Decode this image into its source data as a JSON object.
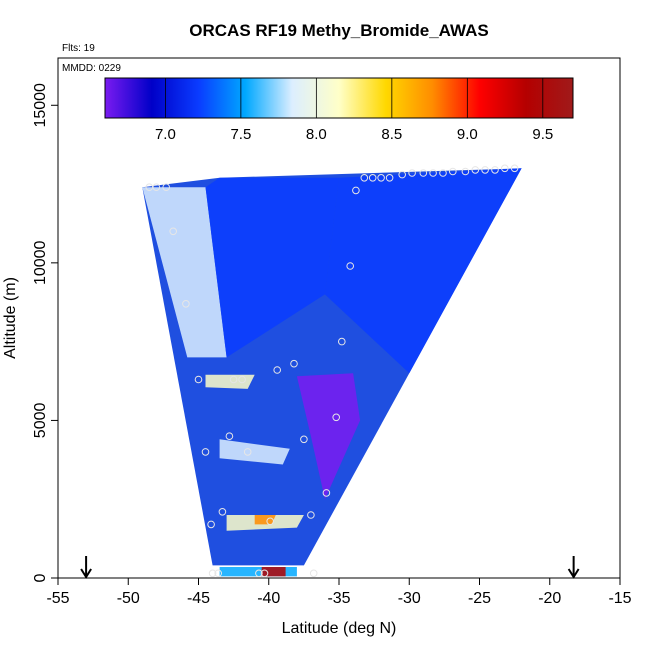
{
  "chart_data": {
    "type": "heatmap",
    "title": "ORCAS RF19 Methy_Bromide_AWAS",
    "annotations": [
      "Flts: 19",
      "MMDD: 0229"
    ],
    "xlabel": "Latitude (deg N)",
    "ylabel": "Altitude (m)",
    "xlim": [
      -55,
      -15
    ],
    "ylim": [
      0,
      16500
    ],
    "x_ticks": [
      -55,
      -50,
      -45,
      -40,
      -35,
      -30,
      -25,
      -20,
      -15
    ],
    "x_tick_labels": [
      "-55",
      "-50",
      "-45",
      "-40",
      "-35",
      "-30",
      "-25",
      "-20",
      "-15"
    ],
    "y_ticks": [
      0,
      5000,
      10000,
      15000
    ],
    "y_tick_labels": [
      "0",
      "5000",
      "10000",
      "15000"
    ],
    "grid": false,
    "colorbar": {
      "range": [
        6.6,
        9.7
      ],
      "ticks": [
        7.0,
        7.5,
        8.0,
        8.5,
        9.0,
        9.5
      ],
      "tick_labels": [
        "7.0",
        "7.5",
        "8.0",
        "8.5",
        "9.0",
        "9.5"
      ],
      "placement": "top-inside",
      "colors": [
        "#7a1bf0",
        "#0000c8",
        "#0a3cff",
        "#00a8ff",
        "#dceeff",
        "#ffffc8",
        "#ffd800",
        "#ff8c00",
        "#ff0000",
        "#b40000",
        "#a01a1a"
      ]
    },
    "field_polygon": [
      [
        -49,
        12400
      ],
      [
        -44,
        400
      ],
      [
        -37.5,
        400
      ],
      [
        -22,
        13000
      ],
      [
        -43.5,
        12700
      ]
    ],
    "regions": [
      {
        "shape": [
          [
            -49,
            12400
          ],
          [
            -44.5,
            12400
          ],
          [
            -43,
            7000
          ],
          [
            -45.8,
            7000
          ]
        ],
        "value": 7.8
      },
      {
        "shape": [
          [
            -44.5,
            12400
          ],
          [
            -43.5,
            12700
          ],
          [
            -35,
            12700
          ],
          [
            -36,
            9000
          ],
          [
            -43,
            7000
          ]
        ],
        "value": 7.35
      },
      {
        "shape": [
          [
            -35,
            12700
          ],
          [
            -22,
            13000
          ],
          [
            -30,
            6500
          ],
          [
            -36,
            9000
          ]
        ],
        "value": 7.25
      },
      {
        "shape": [
          [
            -38,
            6400
          ],
          [
            -34,
            6500
          ],
          [
            -33.5,
            5000
          ],
          [
            -36,
            2500
          ],
          [
            -37,
            4500
          ]
        ],
        "value": 6.7
      },
      {
        "shape": [
          [
            -44.5,
            6450
          ],
          [
            -41,
            6450
          ],
          [
            -41.5,
            6000
          ],
          [
            -44.5,
            6050
          ]
        ],
        "value": 8.0
      },
      {
        "shape": [
          [
            -43.5,
            4400
          ],
          [
            -38.5,
            4100
          ],
          [
            -39,
            3600
          ],
          [
            -43.5,
            3800
          ]
        ],
        "value": 7.7
      },
      {
        "shape": [
          [
            -43,
            2000
          ],
          [
            -37.5,
            2000
          ],
          [
            -38,
            1600
          ],
          [
            -43,
            1500
          ]
        ],
        "value": 8.3
      },
      {
        "shape": [
          [
            -41,
            2000
          ],
          [
            -39.5,
            2000
          ],
          [
            -39.8,
            1700
          ],
          [
            -41,
            1700
          ]
        ],
        "value": 8.9
      },
      {
        "shape": [
          [
            -43.5,
            350
          ],
          [
            -38,
            350
          ],
          [
            -38,
            50
          ],
          [
            -43.5,
            50
          ]
        ],
        "value": 7.6
      },
      {
        "shape": [
          [
            -40.5,
            350
          ],
          [
            -38.8,
            350
          ],
          [
            -38.8,
            50
          ],
          [
            -40.5,
            50
          ]
        ],
        "value": 9.4
      }
    ],
    "samples": [
      {
        "lat": -48.5,
        "alt": 12400
      },
      {
        "lat": -48.0,
        "alt": 12400
      },
      {
        "lat": -47.3,
        "alt": 12400
      },
      {
        "lat": -46.8,
        "alt": 11000
      },
      {
        "lat": -45.9,
        "alt": 8700
      },
      {
        "lat": -45.0,
        "alt": 6300
      },
      {
        "lat": -44.5,
        "alt": 4000
      },
      {
        "lat": -44.1,
        "alt": 1700
      },
      {
        "lat": -44.0,
        "alt": 150
      },
      {
        "lat": -43.6,
        "alt": 150
      },
      {
        "lat": -43.3,
        "alt": 2100
      },
      {
        "lat": -42.8,
        "alt": 4500
      },
      {
        "lat": -42.5,
        "alt": 6300
      },
      {
        "lat": -41.9,
        "alt": 6300
      },
      {
        "lat": -41.5,
        "alt": 4000
      },
      {
        "lat": -40.7,
        "alt": 150
      },
      {
        "lat": -40.3,
        "alt": 150
      },
      {
        "lat": -39.9,
        "alt": 1800
      },
      {
        "lat": -39.4,
        "alt": 6600
      },
      {
        "lat": -38.2,
        "alt": 6800
      },
      {
        "lat": -37.5,
        "alt": 4400
      },
      {
        "lat": -37.0,
        "alt": 2000
      },
      {
        "lat": -36.8,
        "alt": 150
      },
      {
        "lat": -35.9,
        "alt": 2700
      },
      {
        "lat": -35.2,
        "alt": 5100
      },
      {
        "lat": -34.8,
        "alt": 7500
      },
      {
        "lat": -34.2,
        "alt": 9900
      },
      {
        "lat": -33.8,
        "alt": 12300
      },
      {
        "lat": -33.2,
        "alt": 12700
      },
      {
        "lat": -32.6,
        "alt": 12700
      },
      {
        "lat": -32.0,
        "alt": 12700
      },
      {
        "lat": -31.4,
        "alt": 12700
      },
      {
        "lat": -30.5,
        "alt": 12800
      },
      {
        "lat": -29.8,
        "alt": 12850
      },
      {
        "lat": -29.0,
        "alt": 12850
      },
      {
        "lat": -28.3,
        "alt": 12850
      },
      {
        "lat": -27.6,
        "alt": 12850
      },
      {
        "lat": -26.9,
        "alt": 12900
      },
      {
        "lat": -26.0,
        "alt": 12900
      },
      {
        "lat": -25.3,
        "alt": 12950
      },
      {
        "lat": -24.6,
        "alt": 12950
      },
      {
        "lat": -23.9,
        "alt": 12950
      },
      {
        "lat": -23.2,
        "alt": 13000
      },
      {
        "lat": -22.5,
        "alt": 13000
      }
    ],
    "markers": [
      {
        "type": "down-arrow",
        "lat": -53.0
      },
      {
        "type": "down-arrow",
        "lat": -18.3
      }
    ]
  }
}
